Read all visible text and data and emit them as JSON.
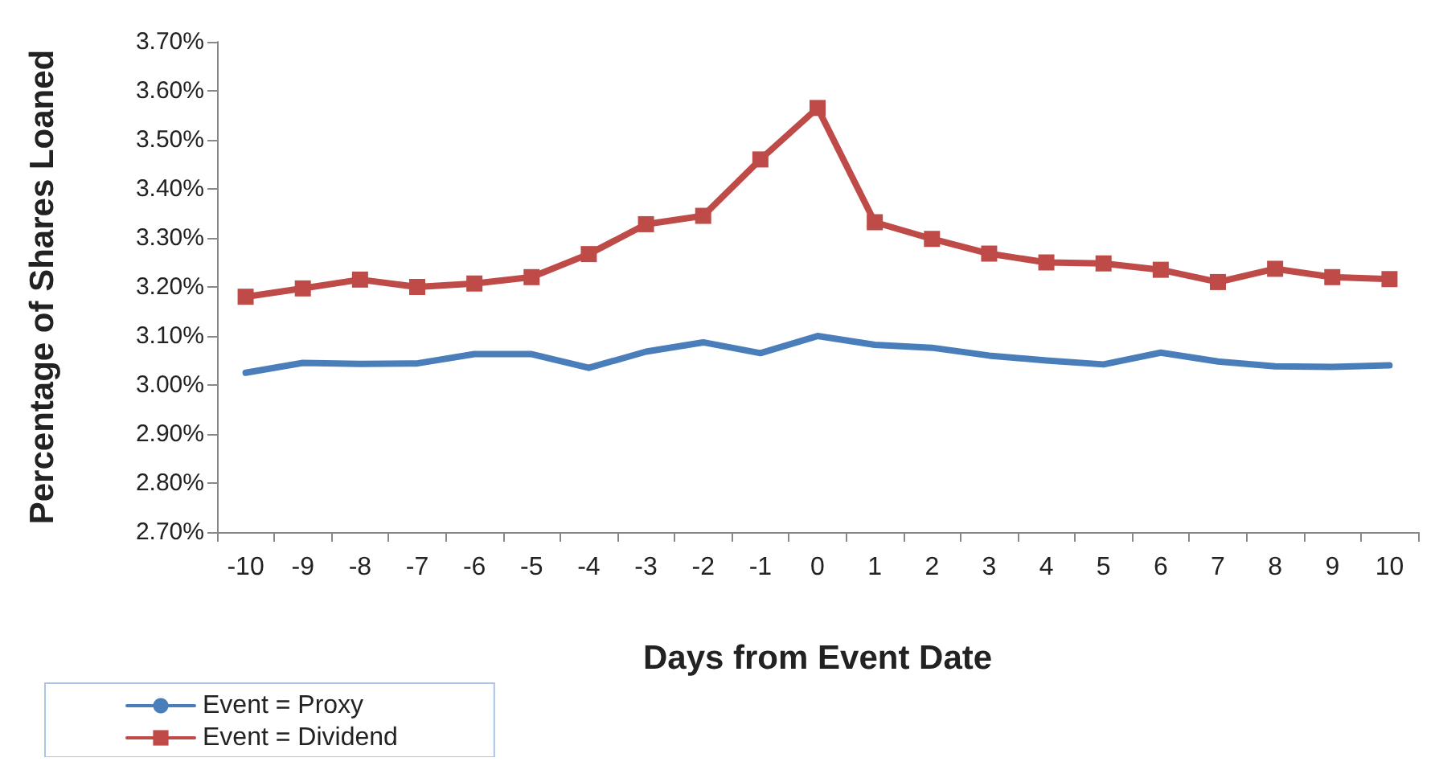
{
  "chart_data": {
    "type": "line",
    "xlabel": "Days from Event Date",
    "ylabel": "Percentage of Shares Loaned",
    "categories": [
      "-10",
      "-9",
      "-8",
      "-7",
      "-6",
      "-5",
      "-4",
      "-3",
      "-2",
      "-1",
      "0",
      "1",
      "2",
      "3",
      "4",
      "5",
      "6",
      "7",
      "8",
      "9",
      "10"
    ],
    "series": [
      {
        "name": "Event = Proxy",
        "color": "#4a7ebb",
        "marker": "none",
        "values": [
          3.025,
          3.045,
          3.043,
          3.044,
          3.063,
          3.063,
          3.035,
          3.068,
          3.087,
          3.065,
          3.1,
          3.082,
          3.076,
          3.06,
          3.05,
          3.042,
          3.066,
          3.048,
          3.038,
          3.037,
          3.04
        ]
      },
      {
        "name": "Event = Dividend",
        "color": "#be4b48",
        "marker": "square",
        "values": [
          3.18,
          3.197,
          3.215,
          3.2,
          3.207,
          3.22,
          3.267,
          3.328,
          3.345,
          3.46,
          3.565,
          3.332,
          3.298,
          3.268,
          3.25,
          3.248,
          3.235,
          3.21,
          3.237,
          3.22,
          3.216
        ]
      }
    ],
    "ylim": [
      2.7,
      3.7
    ],
    "yticks": [
      {
        "value": 2.7,
        "label": "2.70%"
      },
      {
        "value": 2.8,
        "label": "2.80%"
      },
      {
        "value": 2.9,
        "label": "2.90%"
      },
      {
        "value": 3.0,
        "label": "3.00%"
      },
      {
        "value": 3.1,
        "label": "3.10%"
      },
      {
        "value": 3.2,
        "label": "3.20%"
      },
      {
        "value": 3.3,
        "label": "3.30%"
      },
      {
        "value": 3.4,
        "label": "3.40%"
      },
      {
        "value": 3.5,
        "label": "3.50%"
      },
      {
        "value": 3.6,
        "label": "3.60%"
      },
      {
        "value": 3.7,
        "label": "3.70%"
      }
    ],
    "grid": false,
    "legend": "bottom left",
    "line_style": "solid"
  }
}
